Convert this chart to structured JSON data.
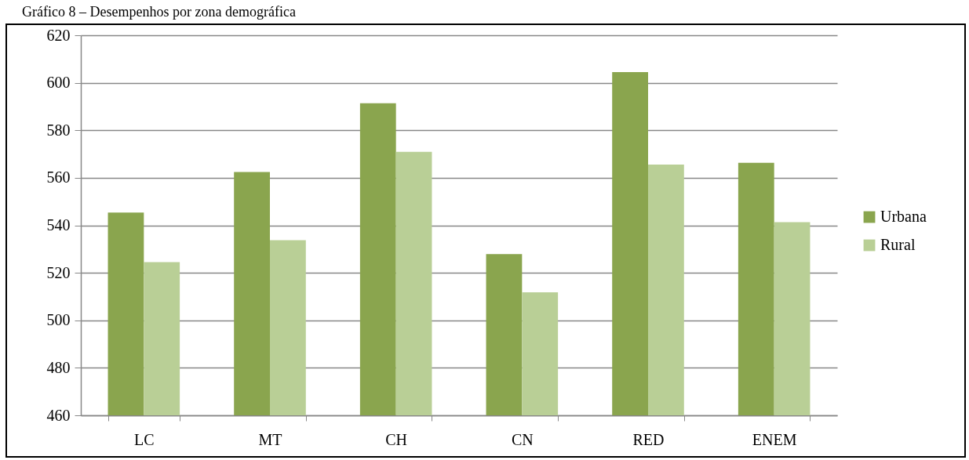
{
  "chart_data": {
    "type": "bar",
    "title": "Gráfico 8 – Desempenhos por zona demográfica",
    "categories": [
      "LC",
      "MT",
      "CH",
      "CN",
      "RED",
      "ENEM"
    ],
    "series": [
      {
        "name": "Urbana",
        "color": "#8aa54e",
        "values": [
          545.4,
          562.4,
          591.4,
          527.9,
          604.5,
          566.3
        ]
      },
      {
        "name": "Rural",
        "color": "#b9cf96",
        "values": [
          524.5,
          533.7,
          570.9,
          511.8,
          565.6,
          541.3
        ]
      }
    ],
    "ylim": [
      460,
      620
    ],
    "yticks": [
      460,
      480,
      500,
      520,
      540,
      560,
      580,
      600,
      620
    ],
    "grid": "y",
    "legend": "right"
  }
}
